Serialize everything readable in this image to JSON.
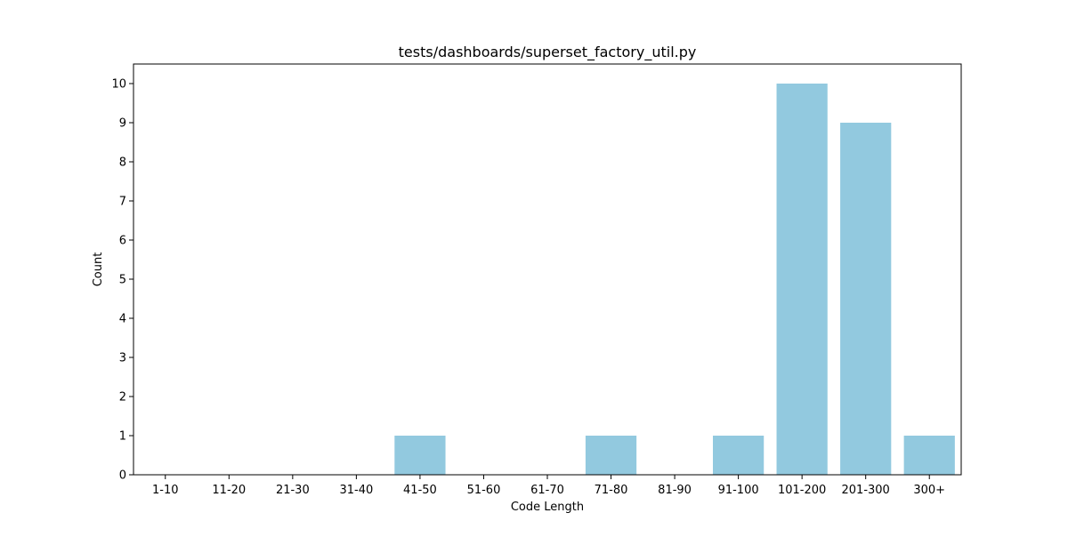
{
  "chart_data": {
    "type": "bar",
    "title": "tests/dashboards/superset_factory_util.py",
    "xlabel": "Code Length",
    "ylabel": "Count",
    "categories": [
      "1-10",
      "11-20",
      "21-30",
      "31-40",
      "41-50",
      "51-60",
      "61-70",
      "71-80",
      "81-90",
      "91-100",
      "101-200",
      "201-300",
      "300+"
    ],
    "values": [
      0,
      0,
      0,
      0,
      1,
      0,
      0,
      1,
      0,
      1,
      10,
      9,
      1
    ],
    "ylim": [
      0,
      10.5
    ],
    "yticks": [
      "0",
      "1",
      "2",
      "3",
      "4",
      "5",
      "6",
      "7",
      "8",
      "9",
      "10"
    ],
    "bar_color": "#92c9df",
    "grid": false,
    "legend": "none"
  }
}
